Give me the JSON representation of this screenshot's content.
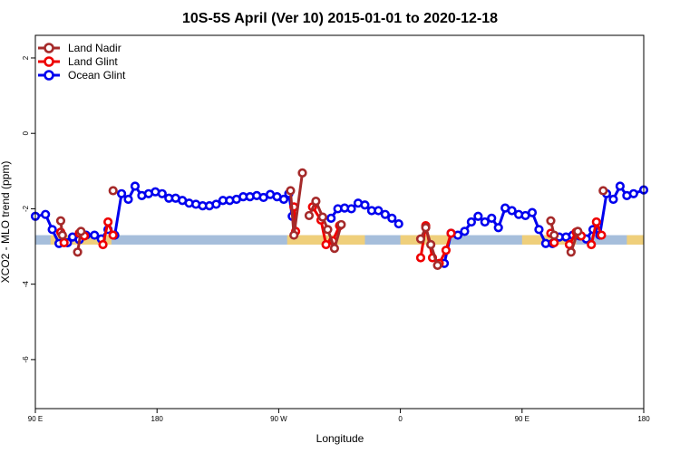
{
  "chart_data": {
    "type": "line",
    "title": "10S-5S April (Ver 10)   2015-01-01 to 2020-12-18",
    "xlabel": "Longitude",
    "ylabel": "XCO2 - MLO trend (ppm)",
    "xlim": [
      90,
      450
    ],
    "ylim": [
      -7.3,
      2.6
    ],
    "x_ticks": [
      {
        "value": 90,
        "label": "90 E"
      },
      {
        "value": 162,
        "label": "180"
      },
      {
        "value": 234,
        "label": "90 W"
      },
      {
        "value": 306,
        "label": "0"
      },
      {
        "value": 378,
        "label": "90 E"
      },
      {
        "value": 450,
        "label": "180"
      }
    ],
    "y_ticks": [
      {
        "value": 2,
        "label": "2"
      },
      {
        "value": 0,
        "label": "0"
      },
      {
        "value": -2,
        "label": "-2"
      },
      {
        "value": -4,
        "label": "-4"
      },
      {
        "value": -6,
        "label": "-6"
      }
    ],
    "legend": {
      "position": "top-left",
      "entries": [
        {
          "name": "Land Nadir",
          "color": "#a52a2a"
        },
        {
          "name": "Land Glint",
          "color": "#ee0000"
        },
        {
          "name": "Ocean Glint",
          "color": "#0000ee"
        }
      ]
    },
    "reference_band": {
      "y_min": -2.95,
      "y_max": -2.7,
      "color": "#a6bedb",
      "highlight_color": "#f7d070",
      "highlight_ranges": [
        [
          99,
          135
        ],
        [
          239,
          285
        ],
        [
          306,
          335
        ],
        [
          378,
          410
        ],
        [
          440,
          466
        ]
      ]
    },
    "series": [
      {
        "name": "Ocean Glint",
        "color": "#0000ee",
        "segments": [
          [
            [
              90,
              -2.2
            ],
            [
              96,
              -2.15
            ],
            [
              100,
              -2.55
            ],
            [
              104,
              -2.92
            ],
            [
              109,
              -2.9
            ],
            [
              112,
              -2.75
            ],
            [
              116,
              -2.82
            ],
            [
              120,
              -2.7
            ],
            [
              125,
              -2.7
            ],
            [
              129,
              -2.8
            ],
            [
              133,
              -2.55
            ],
            [
              137,
              -2.7
            ],
            [
              141,
              -1.6
            ],
            [
              145,
              -1.75
            ],
            [
              149,
              -1.4
            ],
            [
              153,
              -1.65
            ],
            [
              157,
              -1.6
            ],
            [
              161,
              -1.55
            ],
            [
              165,
              -1.6
            ],
            [
              169,
              -1.72
            ],
            [
              173,
              -1.72
            ],
            [
              177,
              -1.78
            ],
            [
              181,
              -1.85
            ],
            [
              185,
              -1.88
            ],
            [
              189,
              -1.92
            ],
            [
              193,
              -1.92
            ],
            [
              197,
              -1.88
            ],
            [
              201,
              -1.78
            ],
            [
              205,
              -1.78
            ],
            [
              209,
              -1.75
            ],
            [
              213,
              -1.68
            ],
            [
              217,
              -1.68
            ],
            [
              221,
              -1.65
            ],
            [
              225,
              -1.7
            ],
            [
              229,
              -1.62
            ],
            [
              233,
              -1.68
            ],
            [
              237,
              -1.75
            ],
            [
              240,
              -1.6
            ],
            [
              242,
              -2.2
            ]
          ],
          [
            [
              265,
              -2.25
            ],
            [
              269,
              -2.0
            ],
            [
              273,
              -1.98
            ],
            [
              277,
              -2.0
            ],
            [
              281,
              -1.85
            ],
            [
              285,
              -1.9
            ],
            [
              289,
              -2.05
            ],
            [
              293,
              -2.05
            ],
            [
              297,
              -2.15
            ],
            [
              301,
              -2.25
            ],
            [
              305,
              -2.4
            ]
          ],
          [
            [
              332,
              -3.45
            ],
            [
              336,
              -2.65
            ],
            [
              340,
              -2.7
            ],
            [
              344,
              -2.6
            ],
            [
              348,
              -2.35
            ],
            [
              352,
              -2.2
            ],
            [
              356,
              -2.35
            ],
            [
              360,
              -2.25
            ],
            [
              364,
              -2.5
            ],
            [
              368,
              -1.98
            ],
            [
              372,
              -2.05
            ],
            [
              376,
              -2.15
            ],
            [
              380,
              -2.18
            ],
            [
              384,
              -2.1
            ],
            [
              388,
              -2.55
            ],
            [
              392,
              -2.92
            ],
            [
              396,
              -2.92
            ],
            [
              400,
              -2.75
            ],
            [
              404,
              -2.75
            ],
            [
              408,
              -2.7
            ],
            [
              412,
              -2.72
            ],
            [
              416,
              -2.8
            ],
            [
              420,
              -2.55
            ],
            [
              424,
              -2.7
            ],
            [
              428,
              -1.6
            ],
            [
              432,
              -1.75
            ],
            [
              436,
              -1.4
            ],
            [
              440,
              -1.65
            ],
            [
              444,
              -1.6
            ],
            [
              450,
              -1.5
            ]
          ]
        ]
      },
      {
        "name": "Land Glint",
        "color": "#ee0000",
        "segments": [
          [
            [
              105,
              -2.62
            ],
            [
              107,
              -2.9
            ]
          ],
          [
            [
              116,
              -2.65
            ],
            [
              119,
              -2.72
            ]
          ],
          [
            [
              130,
              -2.95
            ],
            [
              133,
              -2.35
            ],
            [
              136,
              -2.7
            ]
          ],
          [
            [
              243,
              -1.95
            ],
            [
              244,
              -2.6
            ]
          ],
          [
            [
              254,
              -1.95
            ],
            [
              259,
              -2.3
            ],
            [
              262,
              -2.95
            ],
            [
              266,
              -2.85
            ],
            [
              270,
              -2.45
            ]
          ],
          [
            [
              318,
              -3.3
            ],
            [
              321,
              -2.45
            ],
            [
              325,
              -3.3
            ],
            [
              329,
              -3.45
            ],
            [
              333,
              -3.1
            ],
            [
              336,
              -2.65
            ]
          ],
          [
            [
              395,
              -2.65
            ],
            [
              397,
              -2.9
            ]
          ],
          [
            [
              406,
              -2.95
            ],
            [
              410,
              -2.62
            ],
            [
              413,
              -2.72
            ]
          ],
          [
            [
              419,
              -2.95
            ],
            [
              422,
              -2.35
            ],
            [
              425,
              -2.7
            ]
          ]
        ]
      },
      {
        "name": "Land Nadir",
        "color": "#a52a2a",
        "segments": [
          [
            [
              105,
              -2.32
            ],
            [
              106,
              -2.7
            ]
          ],
          [
            [
              115,
              -3.15
            ],
            [
              117,
              -2.6
            ]
          ],
          [
            [
              136,
              -1.52
            ]
          ],
          [
            [
              241,
              -1.52
            ],
            [
              243,
              -2.7
            ],
            [
              248,
              -1.05
            ]
          ],
          [
            [
              252,
              -2.18
            ],
            [
              256,
              -1.8
            ],
            [
              260,
              -2.22
            ],
            [
              263,
              -2.55
            ],
            [
              267,
              -3.05
            ],
            [
              271,
              -2.42
            ]
          ],
          [
            [
              318,
              -2.8
            ],
            [
              321,
              -2.5
            ],
            [
              324,
              -2.95
            ],
            [
              328,
              -3.5
            ]
          ],
          [
            [
              395,
              -2.32
            ],
            [
              397,
              -2.7
            ]
          ],
          [
            [
              407,
              -3.15
            ],
            [
              411,
              -2.6
            ]
          ],
          [
            [
              426,
              -1.52
            ]
          ]
        ]
      }
    ]
  }
}
